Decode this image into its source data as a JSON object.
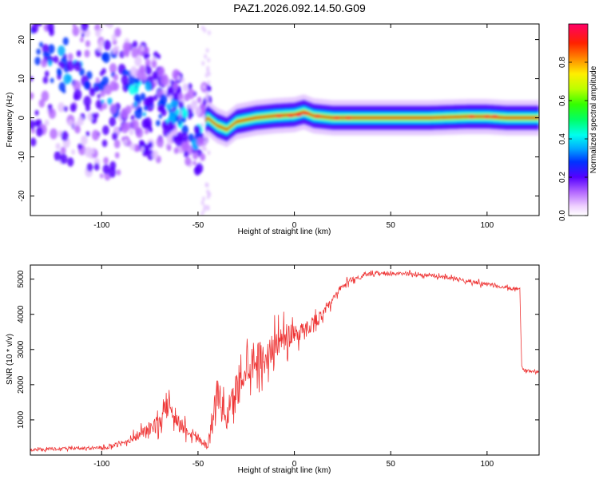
{
  "figure_title": "PAZ1.2026.092.14.50.G09",
  "chart_data": [
    {
      "type": "heatmap",
      "title": "PAZ1.2026.092.14.50.G09",
      "xlabel": "Height of straight line (km)",
      "ylabel": "Frequency (Hz)",
      "xlim": [
        -137,
        127
      ],
      "ylim": [
        -25,
        24
      ],
      "xticks": [
        -100,
        -50,
        0,
        50,
        100
      ],
      "xtick_labels": [
        "-100",
        "-50",
        "0",
        "50",
        "100"
      ],
      "yticks": [
        -20,
        -10,
        0,
        10,
        20
      ],
      "ytick_labels": [
        "-20",
        "-10",
        "0",
        "10",
        "20"
      ],
      "colorbar": {
        "label": "Normalized spectral amplitude",
        "range": [
          0,
          1
        ],
        "ticks": [
          0.0,
          0.2,
          0.4,
          0.6,
          0.8
        ],
        "tick_labels": [
          "0.0",
          "0.2",
          "0.4",
          "0.6",
          "0.8"
        ]
      },
      "ridge": {
        "description_points_x": [
          -137,
          -120,
          -100,
          -90,
          -80,
          -70,
          -60,
          -50,
          -45,
          -40,
          -35,
          -30,
          -20,
          -10,
          0,
          5,
          10,
          20,
          30,
          50,
          70,
          90,
          100,
          110,
          127
        ],
        "frequency_hz": [
          16,
          12,
          9,
          8,
          5,
          3,
          1,
          -4,
          0,
          -2,
          -3,
          -1,
          0,
          0.5,
          0.8,
          1.5,
          0.5,
          0,
          0,
          0,
          0,
          0.3,
          0.3,
          0,
          0
        ]
      }
    },
    {
      "type": "line",
      "xlabel": "Height of straight line (km)",
      "ylabel": "SNR (10 * v/v)",
      "xlim": [
        -137,
        127
      ],
      "ylim": [
        0,
        5400
      ],
      "xticks": [
        -100,
        -50,
        0,
        50,
        100
      ],
      "xtick_labels": [
        "-100",
        "-50",
        "0",
        "50",
        "100"
      ],
      "yticks": [
        1000,
        2000,
        3000,
        4000,
        5000
      ],
      "ytick_labels": [
        "1000",
        "2000",
        "3000",
        "4000",
        "5000"
      ],
      "color": "#ee3333",
      "envelope": {
        "x": [
          -137,
          -120,
          -100,
          -90,
          -80,
          -70,
          -65,
          -60,
          -55,
          -50,
          -45,
          -40,
          -35,
          -30,
          -25,
          -20,
          -15,
          -10,
          -5,
          0,
          5,
          10,
          15,
          20,
          25,
          30,
          40,
          50,
          60,
          70,
          80,
          90,
          95,
          100,
          110,
          117,
          118,
          120,
          127
        ],
        "mean": [
          150,
          180,
          200,
          300,
          600,
          900,
          1500,
          900,
          700,
          500,
          250,
          1800,
          1000,
          1900,
          2600,
          2800,
          2700,
          3200,
          3300,
          3500,
          3500,
          3800,
          4000,
          4400,
          4800,
          5000,
          5150,
          5150,
          5150,
          5100,
          5050,
          4950,
          4900,
          4850,
          4750,
          4700,
          2450,
          2400,
          2380
        ],
        "noise": [
          80,
          80,
          90,
          120,
          300,
          500,
          700,
          500,
          400,
          300,
          200,
          900,
          700,
          1100,
          1100,
          1100,
          900,
          800,
          800,
          700,
          500,
          400,
          300,
          250,
          200,
          150,
          100,
          100,
          100,
          100,
          100,
          100,
          150,
          100,
          100,
          100,
          80,
          80,
          80
        ]
      }
    }
  ]
}
